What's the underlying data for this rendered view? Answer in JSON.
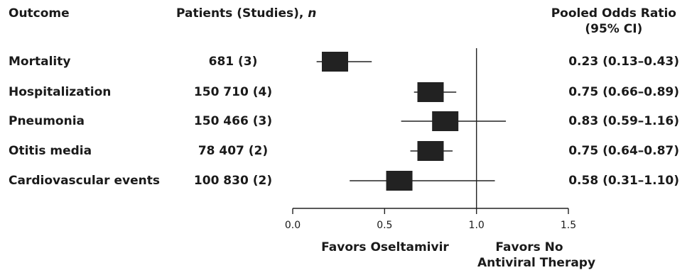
{
  "headers": {
    "outcome": "Outcome",
    "patients": "Patients (Studies), n",
    "ratio_line1": "Pooled Odds Ratio",
    "ratio_line2": "(95% CI)"
  },
  "rows": [
    {
      "outcome": "Mortality",
      "patients": "681 (3)",
      "ci_text": "0.23 (0.13–0.43)"
    },
    {
      "outcome": "Hospitalization",
      "patients": "150 710 (4)",
      "ci_text": "0.75 (0.66–0.89)"
    },
    {
      "outcome": "Pneumonia",
      "patients": "150 466 (3)",
      "ci_text": "0.83 (0.59–1.16)"
    },
    {
      "outcome": "Otitis media",
      "patients": "78 407 (2)",
      "ci_text": "0.75 (0.64–0.87)"
    },
    {
      "outcome": "Cardiovascular events",
      "patients": "100 830 (2)",
      "ci_text": "0.58 (0.31–1.10)"
    }
  ],
  "chart_data": {
    "type": "forest",
    "categories": [
      "Mortality",
      "Hospitalization",
      "Pneumonia",
      "Otitis media",
      "Cardiovascular events"
    ],
    "estimates": [
      0.23,
      0.75,
      0.83,
      0.75,
      0.58
    ],
    "ci_lower": [
      0.13,
      0.66,
      0.59,
      0.64,
      0.31
    ],
    "ci_upper": [
      0.43,
      0.89,
      1.16,
      0.87,
      1.1
    ],
    "xlim": [
      0.0,
      1.5
    ],
    "xticks": [
      0.0,
      0.5,
      1.0,
      1.5
    ],
    "xtick_labels": [
      "0.0",
      "0.5",
      "1.0",
      "1.5"
    ],
    "reference_line": 1.0,
    "favors_left": "Favors Oseltamivir",
    "favors_right_line1": "Favors No",
    "favors_right_line2": "Antiviral Therapy",
    "marker_color": "#222222",
    "line_color": "#222222",
    "grid": false
  }
}
